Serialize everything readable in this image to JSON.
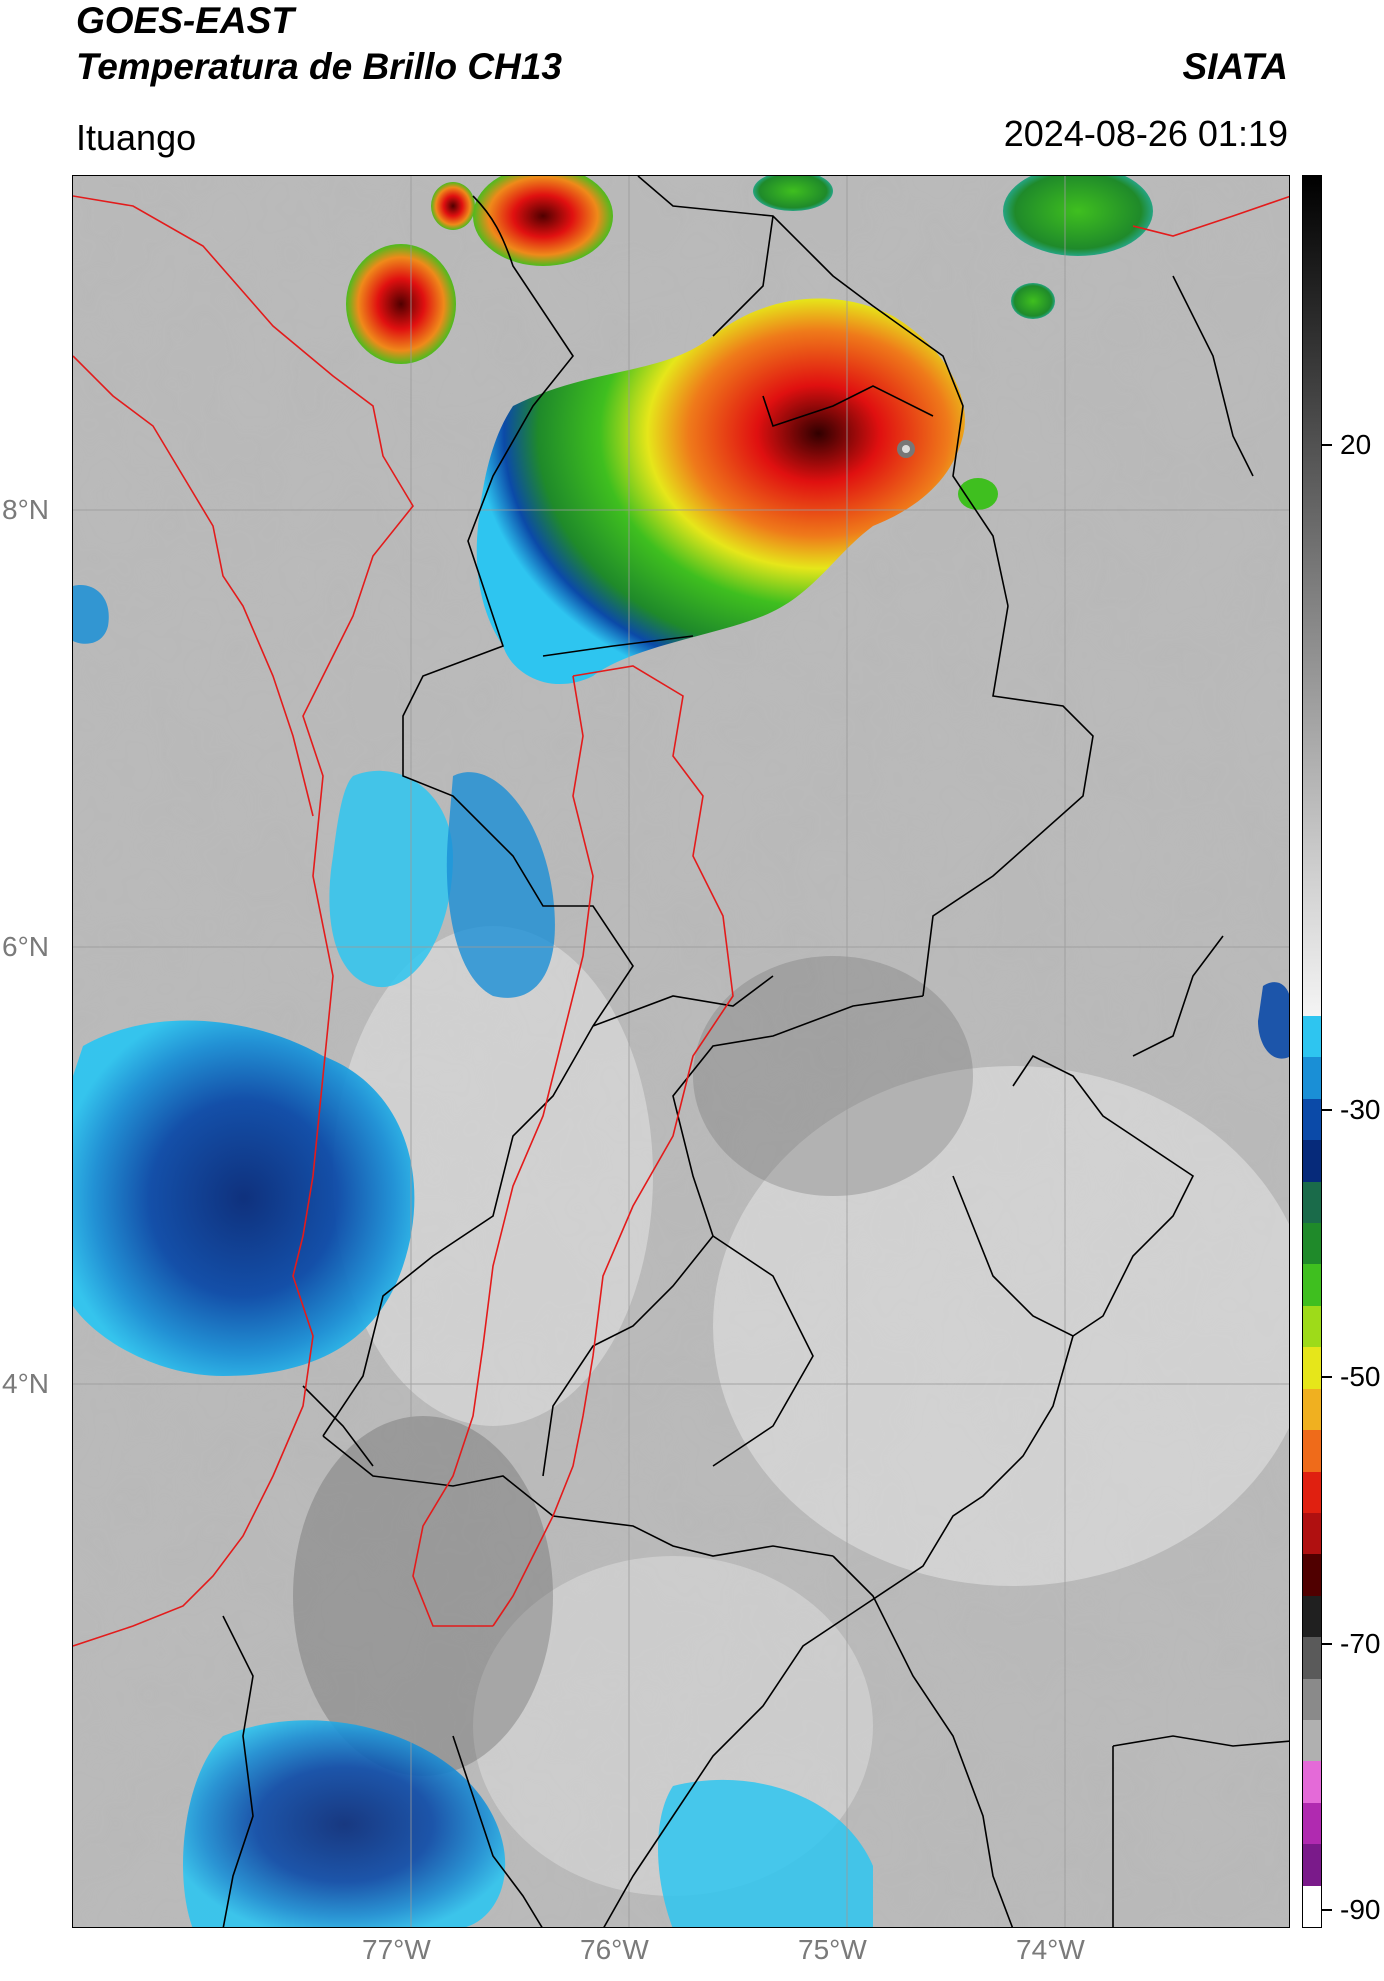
{
  "header": {
    "satellite": "GOES-EAST",
    "product": "Temperatura de Brillo CH13",
    "org": "SIATA",
    "location": "Ituango",
    "datetime": "2024-08-26 01:19"
  },
  "axes": {
    "lon_ticks": [
      "77°W",
      "76°W",
      "75°W",
      "74°W"
    ],
    "lat_ticks": [
      "8°N",
      "6°N",
      "4°N"
    ]
  },
  "colorbar": {
    "ticks": [
      "20",
      "-30",
      "-50",
      "-70",
      "-90"
    ],
    "segments": [
      "#000000",
      "#2a2a2a",
      "#555555",
      "#808080",
      "#a8a8a8",
      "#d0d0d0",
      "#f4f4f4",
      "#2ec5f0",
      "#1a8fd6",
      "#0b4aa8",
      "#062a7a",
      "#1a6b4a",
      "#1f8a2a",
      "#3fbf1f",
      "#9edb19",
      "#e6e61a",
      "#f0b020",
      "#ef6b1a",
      "#e02010",
      "#b01010",
      "#500000",
      "#202020",
      "#5a5a5a",
      "#8a8a8a",
      "#b0b0b0",
      "#e46ad8",
      "#b02ab0",
      "#7a1a8a",
      "#ffffff"
    ],
    "colors": {
      "warm_high": "#000000",
      "cold_blue": "#0b4aa8",
      "cyan": "#2ec5f0",
      "green": "#2fbf2a",
      "yellow": "#e6e61a",
      "orange": "#ef8a1a",
      "red": "#e02010",
      "magenta": "#d44ad0",
      "white": "#ffffff"
    }
  }
}
